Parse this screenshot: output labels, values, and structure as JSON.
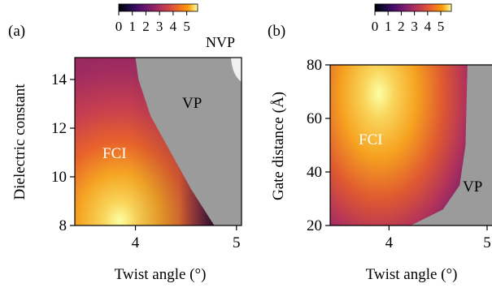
{
  "chart_data": [
    {
      "type": "heatmap",
      "panel_label": "(a)",
      "xlabel": "Twist angle (°)",
      "ylabel": "Dielectric constant",
      "xlim": [
        3.4,
        5.05
      ],
      "ylim": [
        8,
        14.9
      ],
      "xticks": [
        4,
        5
      ],
      "yticks": [
        8,
        10,
        12,
        14
      ],
      "colorbar": {
        "ticks": [
          0,
          1,
          2,
          3,
          4,
          5
        ],
        "range": [
          0,
          5.8
        ],
        "colormap": "inferno"
      },
      "region_labels": [
        "FCI",
        "VP",
        "NVP"
      ],
      "fci_vp_boundary": [
        [
          4.78,
          8
        ],
        [
          4.55,
          9.5
        ],
        [
          4.35,
          11
        ],
        [
          4.15,
          12.5
        ],
        [
          4.03,
          14
        ],
        [
          4.0,
          14.9
        ]
      ],
      "nvp_region_colour": "#f0f0f0",
      "vp_region_colour": "#9b9b9b",
      "peak": {
        "x": 3.82,
        "y": 8.2,
        "value": 5.8
      }
    },
    {
      "type": "heatmap",
      "panel_label": "(b)",
      "xlabel": "Twist angle (°)",
      "ylabel": "Gate distance (Å)",
      "xlim": [
        3.4,
        5.05
      ],
      "ylim": [
        20,
        80
      ],
      "xticks": [
        4,
        5
      ],
      "yticks": [
        20,
        40,
        60,
        80
      ],
      "colorbar": {
        "ticks": [
          0,
          1,
          2,
          3,
          4,
          5
        ],
        "range": [
          0,
          5.8
        ],
        "colormap": "inferno"
      },
      "region_labels": [
        "FCI",
        "VP"
      ],
      "fci_vp_boundary": [
        [
          4.22,
          20
        ],
        [
          4.55,
          26
        ],
        [
          4.72,
          35
        ],
        [
          4.78,
          50
        ],
        [
          4.8,
          80
        ]
      ],
      "vp_region_colour": "#9b9b9b",
      "peak": {
        "x": 3.85,
        "y": 66,
        "value": 5.8
      }
    }
  ]
}
